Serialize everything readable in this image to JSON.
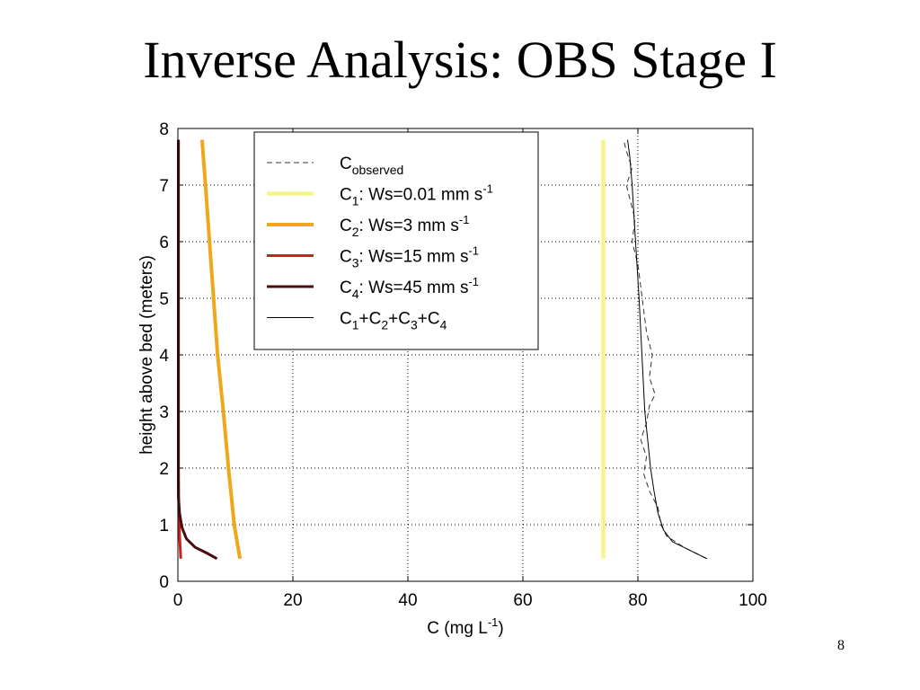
{
  "slide": {
    "title": "Inverse Analysis:  OBS Stage I",
    "page_number": "8"
  },
  "chart_data": {
    "type": "line",
    "xlabel": "C (mg L",
    "xlabel_sup": "-1",
    "xlabel_suffix": ")",
    "ylabel": "height above bed (meters)",
    "xlim": [
      0,
      100
    ],
    "ylim": [
      0,
      8
    ],
    "xticks": [
      0,
      20,
      40,
      60,
      80,
      100
    ],
    "yticks": [
      0,
      1,
      2,
      3,
      4,
      5,
      6,
      7,
      8
    ],
    "grid": true,
    "legend_position": "top-left",
    "series": [
      {
        "key": "observed",
        "legend": {
          "parts": [
            [
              "C",
              ""
            ],
            [
              "observed",
              "sub"
            ]
          ]
        },
        "color": "#333333",
        "width": 1,
        "dash": "6,4",
        "x": [
          92,
          88,
          85,
          84,
          83.5,
          82,
          81,
          81.5,
          80.5,
          81.5,
          82,
          83,
          82,
          82.5,
          81.5,
          81,
          80.5,
          80,
          79,
          79.5,
          78.5,
          78,
          79,
          78,
          77.5
        ],
        "y": [
          0.4,
          0.6,
          0.8,
          1.0,
          1.3,
          1.6,
          1.9,
          2.2,
          2.5,
          2.8,
          3.1,
          3.3,
          3.6,
          4.0,
          4.4,
          4.8,
          5.2,
          5.6,
          6.0,
          6.4,
          6.8,
          7.0,
          7.3,
          7.6,
          7.8
        ]
      },
      {
        "key": "c1",
        "legend": {
          "parts": [
            [
              "C",
              ""
            ],
            [
              "1",
              "sub"
            ],
            [
              ": Ws=0.01 mm s",
              ""
            ],
            [
              "-1",
              "sup"
            ]
          ]
        },
        "color": "#f5f58a",
        "width": 4.5,
        "dash": "",
        "x": [
          74,
          74
        ],
        "y": [
          0.4,
          7.8
        ]
      },
      {
        "key": "c2",
        "legend": {
          "parts": [
            [
              "C",
              ""
            ],
            [
              "2",
              "sub"
            ],
            [
              ": Ws=3 mm s",
              ""
            ],
            [
              "-1",
              "sup"
            ]
          ]
        },
        "color": "#f0a81a",
        "width": 4,
        "dash": "",
        "x": [
          10.8,
          9.8,
          8.8,
          7.9,
          6.9,
          6.2,
          5.5,
          4.8,
          4.2
        ],
        "y": [
          0.4,
          1.0,
          2.0,
          3.0,
          4.0,
          5.0,
          6.0,
          7.0,
          7.8
        ]
      },
      {
        "key": "c3",
        "legend": {
          "parts": [
            [
              "C",
              ""
            ],
            [
              "3",
              "sub"
            ],
            [
              ": Ws=15 mm s",
              ""
            ],
            [
              "-1",
              "sup"
            ]
          ]
        },
        "color": "#cc2020",
        "width": 3,
        "dash": "",
        "x": [
          0.5,
          0.3,
          0.15,
          0.1,
          0.1
        ],
        "y": [
          0.4,
          0.8,
          1.2,
          2.0,
          7.8
        ]
      },
      {
        "key": "c4",
        "legend": {
          "parts": [
            [
              "C",
              ""
            ],
            [
              "4",
              "sub"
            ],
            [
              ": Ws=45 mm s",
              ""
            ],
            [
              "-1",
              "sup"
            ]
          ]
        },
        "color": "#4a0c0c",
        "width": 3,
        "dash": "",
        "x": [
          6.8,
          5,
          3,
          1.5,
          0.7,
          0.3,
          0.1,
          0.1
        ],
        "y": [
          0.4,
          0.5,
          0.6,
          0.75,
          0.95,
          1.2,
          1.5,
          7.8
        ]
      },
      {
        "key": "sum",
        "legend": {
          "parts": [
            [
              "C",
              ""
            ],
            [
              "1",
              "sub"
            ],
            [
              "+C",
              ""
            ],
            [
              "2",
              "sub"
            ],
            [
              "+C",
              ""
            ],
            [
              "3",
              "sub"
            ],
            [
              "+C",
              ""
            ],
            [
              "4",
              "sub"
            ]
          ]
        },
        "color": "#000000",
        "width": 1,
        "dash": "",
        "x": [
          92,
          89,
          86,
          84.5,
          83.5,
          82.8,
          82.2,
          81.7,
          81.2,
          80.7,
          80.2,
          79.6,
          79.0,
          78.6,
          78.2
        ],
        "y": [
          0.4,
          0.55,
          0.7,
          0.9,
          1.2,
          1.6,
          2.0,
          2.5,
          3.0,
          4.0,
          5.0,
          6.0,
          7.0,
          7.5,
          7.8
        ]
      }
    ]
  }
}
